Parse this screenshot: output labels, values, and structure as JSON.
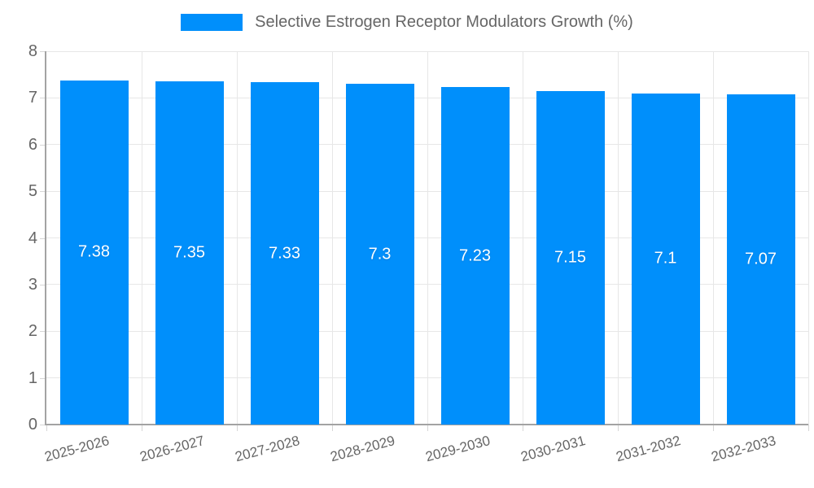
{
  "chart_data": {
    "type": "bar",
    "categories": [
      "2025-2026",
      "2026-2027",
      "2027-2028",
      "2028-2029",
      "2029-2030",
      "2030-2031",
      "2031-2032",
      "2032-2033"
    ],
    "series": [
      {
        "name": "Selective Estrogen Receptor Modulators Growth (%)",
        "values": [
          7.38,
          7.35,
          7.33,
          7.3,
          7.23,
          7.15,
          7.1,
          7.07
        ]
      }
    ],
    "bar_value_labels": [
      "7.38",
      "7.35",
      "7.33",
      "7.3",
      "7.23",
      "7.15",
      "7.1",
      "7.07"
    ],
    "ylim": [
      0,
      8
    ],
    "yticks": [
      0,
      1,
      2,
      3,
      4,
      5,
      6,
      7,
      8
    ],
    "grid": true,
    "legend_position": "top",
    "colors": {
      "bar": "#008FFB",
      "bar_label": "#ffffff",
      "axis_text": "#666666",
      "legend_text": "#666666",
      "grid_line": "#e7e7e7",
      "axis_line": "#a3a3a3",
      "tick": "#d6d6d6",
      "background": "#ffffff"
    }
  }
}
